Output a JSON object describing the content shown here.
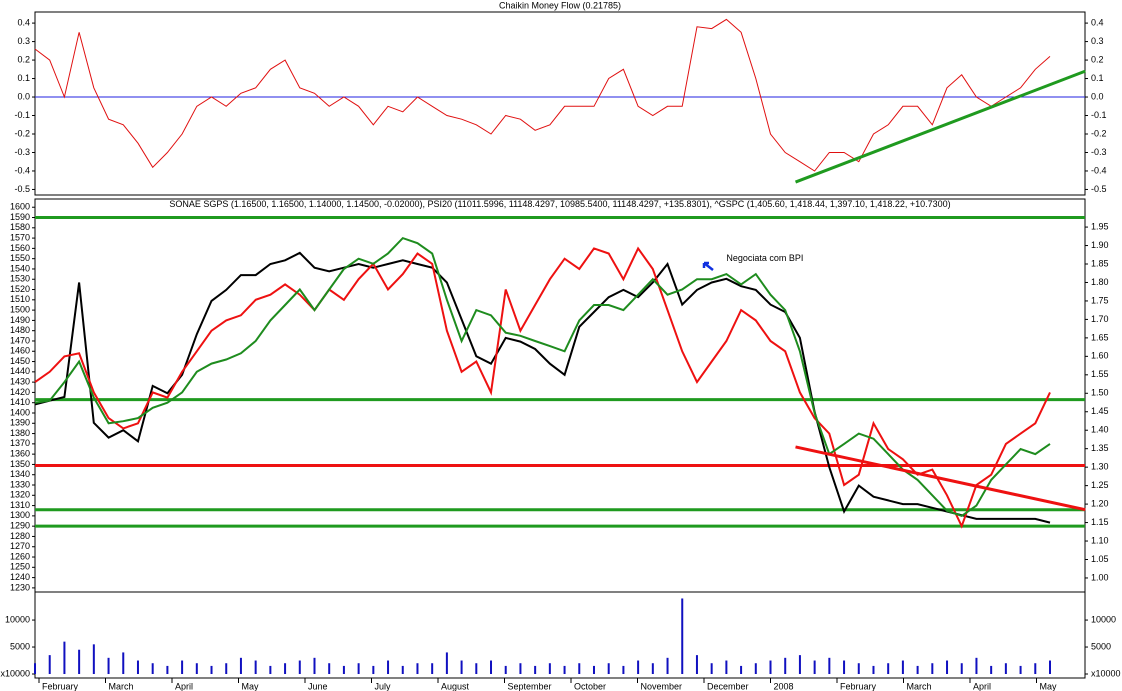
{
  "chart_data": [
    {
      "type": "line",
      "title": "Chaikin Money Flow (0.21785)",
      "ylim": [
        -0.53,
        0.46
      ],
      "yticks": [
        0.4,
        0.3,
        0.2,
        0.1,
        {
          "value": 0,
          "label": "0.0"
        },
        -0.1,
        -0.2,
        -0.3,
        -0.4,
        -0.5
      ],
      "mirror_ticks": true,
      "series": [
        {
          "name": null,
          "color": "#e01010",
          "values": [
            0.26,
            0.2,
            0.0,
            0.35,
            0.05,
            -0.12,
            -0.15,
            -0.25,
            -0.38,
            -0.3,
            -0.2,
            -0.05,
            0.0,
            -0.05,
            0.02,
            0.05,
            0.15,
            0.2,
            0.05,
            0.02,
            -0.05,
            0.0,
            -0.05,
            -0.15,
            -0.05,
            -0.08,
            0.0,
            -0.05,
            -0.1,
            -0.12,
            -0.15,
            -0.2,
            -0.1,
            -0.12,
            -0.18,
            -0.15,
            -0.05,
            -0.05,
            -0.05,
            0.1,
            0.15,
            -0.05,
            -0.1,
            -0.05,
            -0.05,
            0.38,
            0.37,
            0.42,
            0.35,
            0.1,
            -0.2,
            -0.3,
            -0.35,
            -0.4,
            -0.3,
            -0.3,
            -0.35,
            -0.2,
            -0.15,
            -0.05,
            -0.05,
            -0.15,
            0.05,
            0.12,
            0.0,
            -0.05,
            0.0,
            0.05,
            0.15,
            0.22
          ]
        }
      ],
      "hlines": [
        {
          "value": 0,
          "color": "#2020e0",
          "width": 1
        }
      ],
      "trendlines": [
        {
          "x": [
            51.7,
            71.4
          ],
          "y": [
            -0.46,
            0.14
          ],
          "color": "#1f9a1f"
        }
      ]
    },
    {
      "type": "line",
      "ylim": [
        1226,
        1608
      ],
      "yticks": [
        1600,
        1590,
        1580,
        1570,
        1560,
        1550,
        1540,
        1530,
        1520,
        1510,
        1500,
        1490,
        1480,
        1470,
        1460,
        1450,
        1440,
        1430,
        1420,
        1410,
        1400,
        1390,
        1380,
        1370,
        1360,
        1350,
        1340,
        1330,
        1320,
        1310,
        1300,
        1290,
        1280,
        1270,
        1260,
        1250,
        1240,
        1230
      ],
      "y2lim": [
        0.962,
        2.026
      ],
      "y2ticks": [
        1.95,
        {
          "value": 1.9,
          "label": "1.90"
        },
        1.85,
        {
          "value": 1.8,
          "label": "1.80"
        },
        1.75,
        {
          "value": 1.7,
          "label": "1.70"
        },
        1.65,
        {
          "value": 1.6,
          "label": "1.60"
        },
        1.55,
        {
          "value": 1.5,
          "label": "1.50"
        },
        1.45,
        {
          "value": 1.4,
          "label": "1.40"
        },
        1.35,
        {
          "value": 1.3,
          "label": "1.30"
        },
        1.25,
        {
          "value": 1.2,
          "label": "1.20"
        },
        1.15,
        {
          "value": 1.1,
          "label": "1.10"
        },
        1.05,
        {
          "value": 1,
          "label": "1.00"
        }
      ],
      "series": [
        {
          "name": "SONAE SGPS (1.16500, 1.16500, 1.14000, 1.14500, -0.02000),",
          "color": "#000000",
          "axis": "y2",
          "values": [
            1.47,
            1.48,
            1.49,
            1.8,
            1.42,
            1.38,
            1.4,
            1.37,
            1.52,
            1.5,
            1.55,
            1.66,
            1.75,
            1.78,
            1.82,
            1.82,
            1.85,
            1.86,
            1.88,
            1.84,
            1.83,
            1.84,
            1.85,
            1.84,
            1.85,
            1.86,
            1.85,
            1.84,
            1.8,
            1.7,
            1.6,
            1.58,
            1.65,
            1.64,
            1.62,
            1.58,
            1.55,
            1.68,
            1.72,
            1.76,
            1.78,
            1.76,
            1.8,
            1.85,
            1.74,
            1.78,
            1.8,
            1.81,
            1.79,
            1.78,
            1.74,
            1.72,
            1.65,
            1.45,
            1.3,
            1.18,
            1.25,
            1.22,
            1.21,
            1.2,
            1.2,
            1.19,
            1.18,
            1.17,
            1.16,
            1.16,
            1.16,
            1.16,
            1.16,
            1.15
          ]
        },
        {
          "name": "PSI20 (11011.5996, 11148.4297, 10985.5400, 11148.4297, +135.8301),",
          "color": "#ee1111",
          "values": [
            1430,
            1440,
            1455,
            1458,
            1420,
            1395,
            1385,
            1390,
            1420,
            1415,
            1440,
            1460,
            1480,
            1490,
            1495,
            1510,
            1515,
            1525,
            1515,
            1500,
            1520,
            1510,
            1530,
            1545,
            1520,
            1535,
            1555,
            1545,
            1480,
            1440,
            1450,
            1420,
            1520,
            1480,
            1505,
            1530,
            1550,
            1540,
            1560,
            1555,
            1530,
            1560,
            1540,
            1500,
            1460,
            1430,
            1450,
            1470,
            1500,
            1490,
            1470,
            1460,
            1420,
            1395,
            1380,
            1330,
            1340,
            1390,
            1365,
            1355,
            1340,
            1345,
            1320,
            1290,
            1330,
            1340,
            1370,
            1380,
            1390,
            1420
          ]
        },
        {
          "name": "^GSPC (1,405.60, 1,418.44, 1,397.10, 1,418.22, +10.7300)",
          "color": "#1e8c1e",
          "values": [
            1410,
            1412,
            1430,
            1450,
            1415,
            1390,
            1392,
            1395,
            1405,
            1410,
            1420,
            1440,
            1448,
            1452,
            1458,
            1470,
            1490,
            1505,
            1520,
            1500,
            1520,
            1540,
            1550,
            1545,
            1555,
            1570,
            1565,
            1555,
            1510,
            1470,
            1500,
            1495,
            1478,
            1475,
            1470,
            1465,
            1460,
            1490,
            1505,
            1505,
            1500,
            1515,
            1530,
            1515,
            1520,
            1530,
            1530,
            1535,
            1525,
            1535,
            1515,
            1500,
            1460,
            1400,
            1360,
            1370,
            1380,
            1375,
            1360,
            1345,
            1335,
            1320,
            1305,
            1300,
            1310,
            1335,
            1350,
            1365,
            1360,
            1370
          ]
        }
      ],
      "hlines": [
        {
          "value": 1590,
          "color": "#1f9a1f",
          "width": 3
        },
        {
          "value": 1413,
          "color": "#1f9a1f",
          "width": 3
        },
        {
          "value": 1349,
          "color": "#ee1111",
          "width": 3
        },
        {
          "value": 1306,
          "color": "#1f9a1f",
          "width": 3
        },
        {
          "value": 1290,
          "color": "#1f9a1f",
          "width": 3
        }
      ],
      "trendlines": [
        {
          "x": [
            51.7,
            71.4
          ],
          "y": [
            1367,
            1306
          ],
          "color": "#ee1111"
        }
      ],
      "annotations": [
        {
          "text": "Negociata com BPI",
          "x": 47.0,
          "y": 1550
        }
      ]
    },
    {
      "type": "bar",
      "ylim": [
        -740,
        15200
      ],
      "yticks": [
        10000,
        5000,
        {
          "value": 0,
          "label": "x10000"
        }
      ],
      "mirror_ticks": true,
      "color": "#1010c0",
      "values": [
        2000,
        3500,
        6000,
        4500,
        5500,
        3000,
        4000,
        2500,
        2000,
        1500,
        2500,
        2000,
        1500,
        2000,
        3000,
        2500,
        1500,
        2000,
        2500,
        3000,
        2000,
        1500,
        2000,
        1500,
        2500,
        1500,
        2000,
        2000,
        4000,
        2500,
        2000,
        2500,
        1500,
        2000,
        1500,
        2000,
        1500,
        2000,
        1500,
        2000,
        1500,
        2500,
        2000,
        3000,
        14000,
        3500,
        2000,
        2500,
        1500,
        2000,
        2500,
        3000,
        3500,
        2500,
        3000,
        2500,
        2000,
        1500,
        2000,
        2500,
        1500,
        2000,
        2500,
        2000,
        3000,
        1500,
        2000,
        1500,
        2000,
        2500
      ],
      "x_tick_labels": [
        "February",
        "March",
        "April",
        "May",
        "June",
        "July",
        "August",
        "September",
        "October",
        "November",
        "December",
        "2008",
        "February",
        "March",
        "April",
        "May"
      ]
    }
  ]
}
